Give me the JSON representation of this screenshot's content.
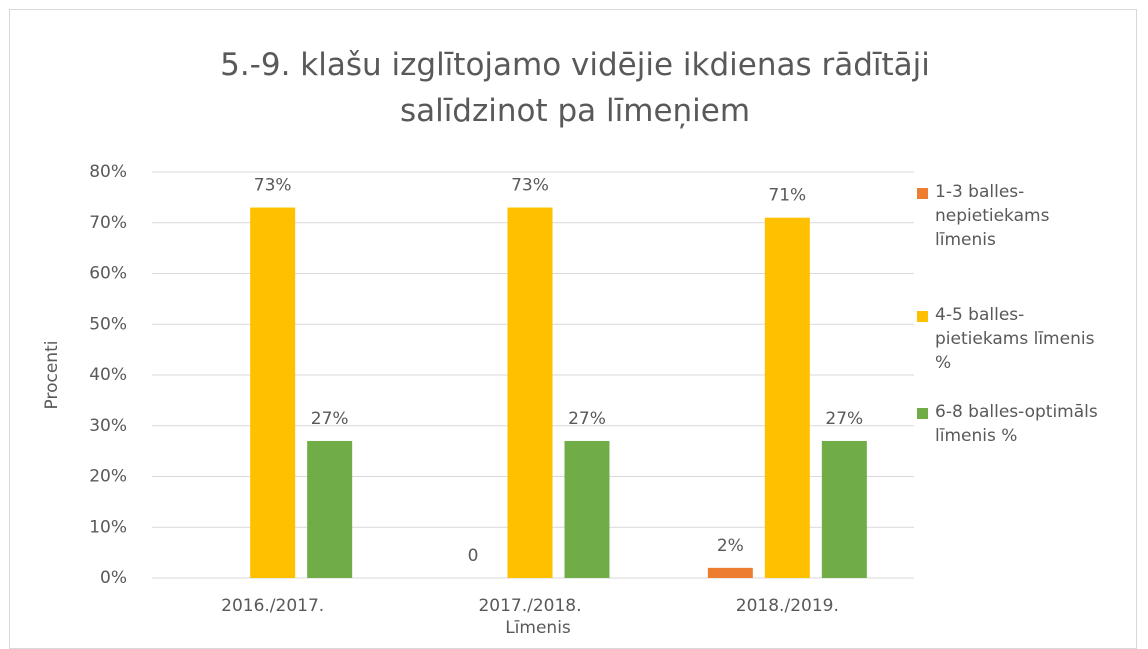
{
  "chart_data": {
    "type": "bar",
    "title": "5.-9. klašu  izglītojamo vidējie ikdienas rādītāji salīdzinot pa līmeņiem",
    "xlabel": "Līmenis",
    "ylabel": "Procenti",
    "categories": [
      "2016./2017.",
      "2017./2018.",
      "2018./2019."
    ],
    "series": [
      {
        "name": "1-3 balles-nepietiekams līmenis",
        "color": "#ed7d31",
        "values": [
          null,
          0,
          2
        ],
        "value_labels": [
          null,
          "0",
          "2%"
        ]
      },
      {
        "name": "4-5 balles-pietiekams līmenis %",
        "color": "#ffc000",
        "values": [
          73,
          73,
          71
        ],
        "value_labels": [
          "73%",
          "73%",
          "71%"
        ]
      },
      {
        "name": "6-8  balles-optimāls līmenis %",
        "color": "#70ad47",
        "values": [
          27,
          27,
          27
        ],
        "value_labels": [
          "27%",
          "27%",
          "27%"
        ]
      }
    ],
    "ylim": [
      0,
      80
    ],
    "yticks": [
      {
        "value": 0,
        "label": "0%"
      },
      {
        "value": 10,
        "label": "10%"
      },
      {
        "value": 20,
        "label": "20%"
      },
      {
        "value": 30,
        "label": "30%"
      },
      {
        "value": 40,
        "label": "40%"
      },
      {
        "value": 50,
        "label": "50%"
      },
      {
        "value": 60,
        "label": "60%"
      },
      {
        "value": 70,
        "label": "70%"
      },
      {
        "value": 80,
        "label": "80%"
      }
    ],
    "grid": true,
    "legend": "right"
  }
}
